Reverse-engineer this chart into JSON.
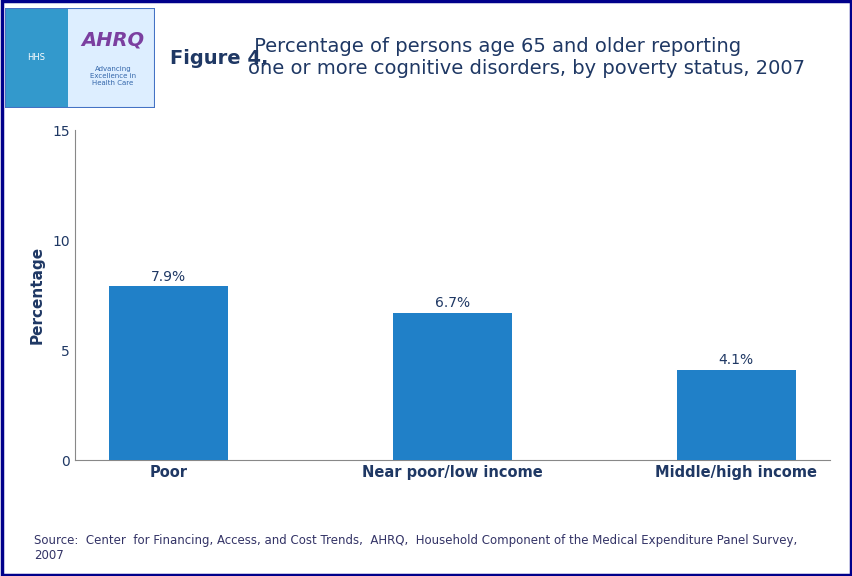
{
  "categories": [
    "Poor",
    "Near poor/low income",
    "Middle/high income"
  ],
  "values": [
    7.9,
    6.7,
    4.1
  ],
  "value_labels": [
    "7.9%",
    "6.7%",
    "4.1%"
  ],
  "bar_color": "#2080C8",
  "background_color": "#FFFFFF",
  "figure_title_bold": "Figure 4.",
  "figure_title_rest": " Percentage of persons age 65 and older reporting\none or more cognitive disorders, by poverty status, 2007",
  "ylabel": "Percentage",
  "ylim": [
    0,
    15
  ],
  "yticks": [
    0,
    5,
    10,
    15
  ],
  "source_text": "Source:  Center  for Financing, Access, and Cost Trends,  AHRQ,  Household Component of the Medical Expenditure Panel Survey,\n2007",
  "title_color": "#1F3864",
  "bar_label_color": "#1F3864",
  "axis_label_color": "#1F3864",
  "tick_label_color": "#1F3864",
  "source_color": "#333366",
  "separator_line_color": "#00008B",
  "header_bg_color": "#3399CC",
  "logo_border_color": "#4472C4",
  "ahrq_text_color": "#7B3FA0",
  "ahrq_subtext_color": "#3366AA"
}
